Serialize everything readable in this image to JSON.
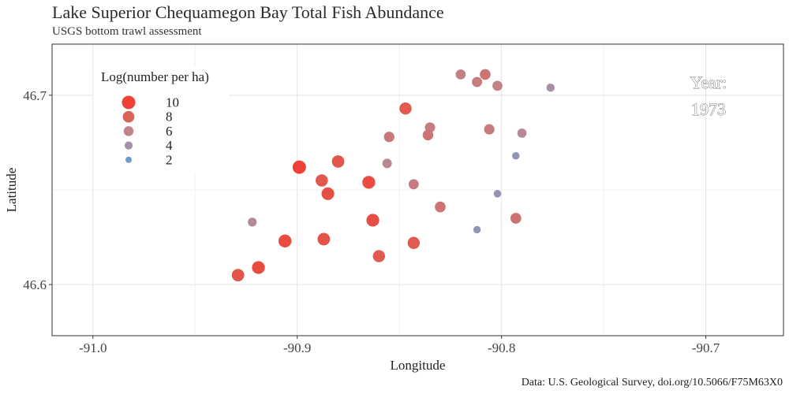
{
  "chart_data": {
    "type": "scatter",
    "title": "Lake Superior Chequamegon Bay Total Fish Abundance",
    "subtitle": "USGS bottom trawl assessment",
    "caption": "Data: U.S. Geological Survey, doi.org/10.5066/F75M63X0",
    "xlabel": "Longitude",
    "ylabel": "Latitude",
    "xlim": [
      -91.02,
      -90.662
    ],
    "ylim": [
      46.573,
      46.727
    ],
    "xticks": [
      -91.0,
      -90.9,
      -90.8,
      -90.7
    ],
    "xtick_labels": [
      "-91.0",
      "-90.9",
      "-90.8",
      "-90.7"
    ],
    "yticks": [
      46.6,
      46.7
    ],
    "ytick_labels": [
      "46.6",
      "46.7"
    ],
    "grid": true,
    "annotation": {
      "label": "Year:",
      "value": "1973"
    },
    "legend": {
      "title": "Log(number per ha)",
      "position": "top-left",
      "items": [
        {
          "label": "10",
          "value": 10,
          "color": "#ef4136"
        },
        {
          "label": "8",
          "value": 8,
          "color": "#d9645a"
        },
        {
          "label": "6",
          "value": 6,
          "color": "#c0838a"
        },
        {
          "label": "4",
          "value": 4,
          "color": "#a592a8"
        },
        {
          "label": "2",
          "value": 2,
          "color": "#6f9acc"
        }
      ]
    },
    "points": [
      {
        "lon": -90.82,
        "lat": 46.711,
        "value": 6.2
      },
      {
        "lon": -90.808,
        "lat": 46.711,
        "value": 7.0
      },
      {
        "lon": -90.812,
        "lat": 46.707,
        "value": 6.4
      },
      {
        "lon": -90.802,
        "lat": 46.705,
        "value": 6.2
      },
      {
        "lon": -90.776,
        "lat": 46.704,
        "value": 4.2
      },
      {
        "lon": -90.847,
        "lat": 46.693,
        "value": 8.6
      },
      {
        "lon": -90.835,
        "lat": 46.683,
        "value": 6.4
      },
      {
        "lon": -90.806,
        "lat": 46.682,
        "value": 6.6
      },
      {
        "lon": -90.79,
        "lat": 46.68,
        "value": 5.3
      },
      {
        "lon": -90.855,
        "lat": 46.678,
        "value": 6.7
      },
      {
        "lon": -90.836,
        "lat": 46.679,
        "value": 6.9
      },
      {
        "lon": -90.793,
        "lat": 46.668,
        "value": 3.3
      },
      {
        "lon": -90.88,
        "lat": 46.665,
        "value": 8.9
      },
      {
        "lon": -90.856,
        "lat": 46.664,
        "value": 5.5
      },
      {
        "lon": -90.899,
        "lat": 46.662,
        "value": 10.0
      },
      {
        "lon": -90.888,
        "lat": 46.655,
        "value": 8.7
      },
      {
        "lon": -90.865,
        "lat": 46.654,
        "value": 9.4
      },
      {
        "lon": -90.843,
        "lat": 46.653,
        "value": 6.3
      },
      {
        "lon": -90.885,
        "lat": 46.648,
        "value": 9.2
      },
      {
        "lon": -90.802,
        "lat": 46.648,
        "value": 3.4
      },
      {
        "lon": -90.83,
        "lat": 46.641,
        "value": 7.0
      },
      {
        "lon": -90.863,
        "lat": 46.634,
        "value": 9.3
      },
      {
        "lon": -90.793,
        "lat": 46.635,
        "value": 7.1
      },
      {
        "lon": -90.922,
        "lat": 46.633,
        "value": 4.9
      },
      {
        "lon": -90.812,
        "lat": 46.629,
        "value": 3.2
      },
      {
        "lon": -90.906,
        "lat": 46.623,
        "value": 9.5
      },
      {
        "lon": -90.887,
        "lat": 46.624,
        "value": 9.0
      },
      {
        "lon": -90.843,
        "lat": 46.622,
        "value": 8.6
      },
      {
        "lon": -90.86,
        "lat": 46.615,
        "value": 8.6
      },
      {
        "lon": -90.919,
        "lat": 46.609,
        "value": 9.4
      },
      {
        "lon": -90.929,
        "lat": 46.605,
        "value": 8.9
      }
    ]
  }
}
